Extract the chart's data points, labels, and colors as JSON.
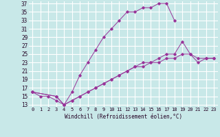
{
  "xlabel": "Windchill (Refroidissement éolien,°C)",
  "bg_color": "#c8e8e8",
  "line_color": "#993399",
  "grid_color": "#ffffff",
  "ylim": [
    13,
    37
  ],
  "xlim": [
    -0.5,
    23.5
  ],
  "yticks": [
    13,
    15,
    17,
    19,
    21,
    23,
    25,
    27,
    29,
    31,
    33,
    35,
    37
  ],
  "xticks": [
    0,
    1,
    2,
    3,
    4,
    5,
    6,
    7,
    8,
    9,
    10,
    11,
    12,
    13,
    14,
    15,
    16,
    17,
    18,
    19,
    20,
    21,
    22,
    23
  ],
  "curve1_x": [
    0,
    1,
    2,
    3,
    4,
    5,
    6,
    7,
    8,
    9,
    10,
    11,
    12,
    13,
    14,
    15,
    16,
    17,
    18
  ],
  "curve1_y": [
    16,
    15,
    15,
    14,
    13,
    16,
    20,
    23,
    26,
    29,
    31,
    33,
    35,
    35,
    36,
    36,
    37,
    37,
    33
  ],
  "curve2_x": [
    0,
    3,
    4,
    5,
    6,
    7,
    8,
    9,
    10,
    11,
    12,
    13,
    14,
    15,
    16,
    17,
    18,
    19,
    20,
    21,
    22,
    23
  ],
  "curve2_y": [
    16,
    15,
    13,
    14,
    15,
    16,
    17,
    18,
    19,
    20,
    21,
    22,
    23,
    23,
    24,
    25,
    25,
    28,
    25,
    23,
    24,
    24
  ],
  "curve3_x": [
    0,
    3,
    4,
    5,
    6,
    7,
    8,
    9,
    10,
    11,
    12,
    13,
    14,
    15,
    16,
    17,
    18,
    19,
    20,
    21,
    22,
    23
  ],
  "curve3_y": [
    16,
    15,
    13,
    14,
    15,
    16,
    17,
    18,
    19,
    20,
    21,
    22,
    22,
    23,
    23,
    24,
    24,
    25,
    25,
    24,
    24,
    24
  ]
}
